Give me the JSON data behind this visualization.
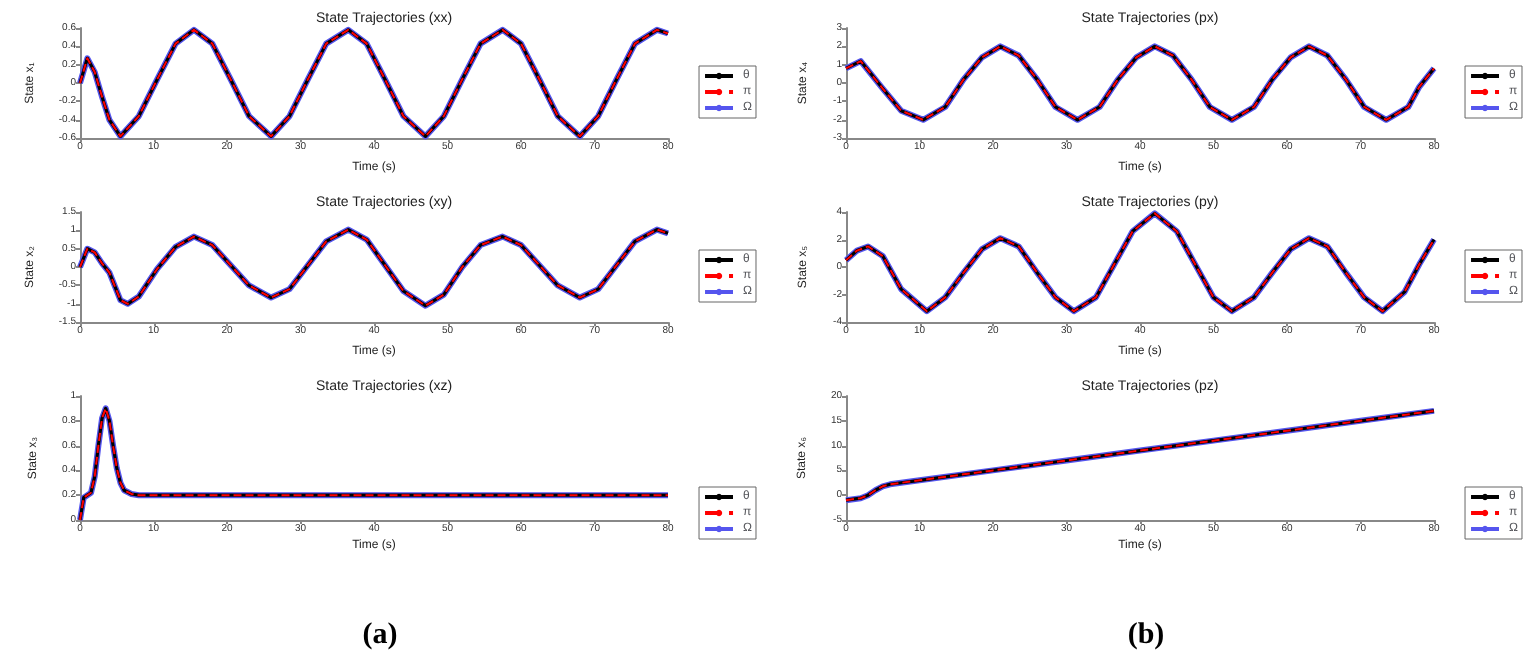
{
  "chart_data": [
    {
      "type": "line",
      "title": "State Trajectories (xx)",
      "xlabel": "Time (s)",
      "ylabel": "State x₁",
      "xlim": [
        0,
        80
      ],
      "xticks": [
        0,
        10,
        20,
        30,
        40,
        50,
        60,
        70,
        80
      ],
      "ylim": [
        -0.6,
        0.6
      ],
      "yticks": [
        -0.6,
        -0.4,
        -0.2,
        0,
        0.2,
        0.4,
        0.6
      ],
      "legend": "right",
      "grid": false,
      "marker": "none",
      "x": [
        0,
        1,
        2,
        3,
        4,
        5.5,
        8,
        10.5,
        13,
        15.5,
        18,
        20.5,
        23,
        26,
        28.5,
        31,
        33.5,
        36.5,
        39,
        41.5,
        44,
        47,
        49.5,
        52,
        54.5,
        57.5,
        60,
        62.5,
        65,
        68,
        70.5,
        73,
        75.5,
        78.5,
        80
      ],
      "series": [
        {
          "name": "θ",
          "color": "#000000",
          "line_style": "solid",
          "values": [
            0,
            0.27,
            0.12,
            -0.15,
            -0.4,
            -0.58,
            -0.36,
            0.04,
            0.43,
            0.58,
            0.43,
            0.04,
            -0.36,
            -0.58,
            -0.36,
            0.04,
            0.43,
            0.58,
            0.43,
            0.04,
            -0.36,
            -0.58,
            -0.36,
            0.04,
            0.43,
            0.58,
            0.43,
            0.04,
            -0.36,
            -0.58,
            -0.36,
            0.04,
            0.43,
            0.58,
            0.54
          ]
        },
        {
          "name": "π",
          "color": "#ff0000",
          "line_style": "dashed",
          "values": [
            0,
            0.27,
            0.12,
            -0.15,
            -0.4,
            -0.58,
            -0.36,
            0.04,
            0.43,
            0.58,
            0.43,
            0.04,
            -0.36,
            -0.58,
            -0.36,
            0.04,
            0.43,
            0.58,
            0.43,
            0.04,
            -0.36,
            -0.58,
            -0.36,
            0.04,
            0.43,
            0.58,
            0.43,
            0.04,
            -0.36,
            -0.58,
            -0.36,
            0.04,
            0.43,
            0.58,
            0.54
          ]
        },
        {
          "name": "Ω",
          "color": "#5555ee",
          "line_style": "solid",
          "values": [
            0,
            0.27,
            0.12,
            -0.15,
            -0.4,
            -0.58,
            -0.36,
            0.04,
            0.43,
            0.58,
            0.43,
            0.04,
            -0.36,
            -0.58,
            -0.36,
            0.04,
            0.43,
            0.58,
            0.43,
            0.04,
            -0.36,
            -0.58,
            -0.36,
            0.04,
            0.43,
            0.58,
            0.43,
            0.04,
            -0.36,
            -0.58,
            -0.36,
            0.04,
            0.43,
            0.58,
            0.54
          ]
        }
      ]
    },
    {
      "type": "line",
      "title": "State Trajectories (xy)",
      "xlabel": "Time (s)",
      "ylabel": "State x₂",
      "xlim": [
        0,
        80
      ],
      "xticks": [
        0,
        10,
        20,
        30,
        40,
        50,
        60,
        70,
        80
      ],
      "ylim": [
        -1.5,
        1.5
      ],
      "yticks": [
        -1.5,
        -1,
        -0.5,
        0,
        0.5,
        1,
        1.5
      ],
      "legend": "right",
      "grid": false,
      "marker": "none",
      "x": [
        0,
        1,
        2,
        3,
        4,
        5.5,
        6.5,
        8,
        10.5,
        13,
        15.5,
        18,
        20.5,
        23,
        26,
        28.5,
        31,
        33.5,
        36.5,
        39,
        41.5,
        44,
        47,
        49.5,
        52,
        54.5,
        57.5,
        60,
        62.5,
        65,
        68,
        70.5,
        73,
        75.5,
        78.5,
        80
      ],
      "series": [
        {
          "name": "θ",
          "color": "#000000",
          "line_style": "solid",
          "values": [
            0,
            0.5,
            0.4,
            0.1,
            -0.15,
            -0.9,
            -1,
            -0.8,
            -0.05,
            0.55,
            0.83,
            0.6,
            0.05,
            -0.5,
            -0.83,
            -0.6,
            0.05,
            0.7,
            1.02,
            0.75,
            0.05,
            -0.65,
            -1.05,
            -0.75,
            0,
            0.6,
            0.83,
            0.6,
            0.05,
            -0.5,
            -0.83,
            -0.6,
            0.05,
            0.7,
            1.02,
            0.92
          ]
        },
        {
          "name": "π",
          "color": "#ff0000",
          "line_style": "dashed",
          "values": [
            0,
            0.5,
            0.4,
            0.1,
            -0.15,
            -0.9,
            -1,
            -0.8,
            -0.05,
            0.55,
            0.83,
            0.6,
            0.05,
            -0.5,
            -0.83,
            -0.6,
            0.05,
            0.7,
            1.02,
            0.75,
            0.05,
            -0.65,
            -1.05,
            -0.75,
            0,
            0.6,
            0.83,
            0.6,
            0.05,
            -0.5,
            -0.83,
            -0.6,
            0.05,
            0.7,
            1.02,
            0.92
          ]
        },
        {
          "name": "Ω",
          "color": "#5555ee",
          "line_style": "solid",
          "values": [
            0,
            0.5,
            0.4,
            0.1,
            -0.15,
            -0.9,
            -1,
            -0.8,
            -0.05,
            0.55,
            0.83,
            0.6,
            0.05,
            -0.5,
            -0.83,
            -0.6,
            0.05,
            0.7,
            1.02,
            0.75,
            0.05,
            -0.65,
            -1.05,
            -0.75,
            0,
            0.6,
            0.83,
            0.6,
            0.05,
            -0.5,
            -0.83,
            -0.6,
            0.05,
            0.7,
            1.02,
            0.92
          ]
        }
      ]
    },
    {
      "type": "line",
      "title": "State Trajectories (xz)",
      "xlabel": "Time (s)",
      "ylabel": "State x₃",
      "xlim": [
        0,
        80
      ],
      "xticks": [
        0,
        10,
        20,
        30,
        40,
        50,
        60,
        70,
        80
      ],
      "ylim": [
        0,
        1
      ],
      "yticks": [
        0,
        0.2,
        0.4,
        0.6,
        0.8,
        1
      ],
      "legend": "right",
      "grid": false,
      "marker": "none",
      "annotations": [
        "(a)"
      ],
      "x": [
        0,
        0.5,
        1,
        1.5,
        2,
        2.5,
        3,
        3.5,
        4,
        4.5,
        5,
        5.5,
        6,
        7,
        8,
        10,
        20,
        30,
        40,
        50,
        60,
        70,
        80
      ],
      "series": [
        {
          "name": "θ",
          "color": "#000000",
          "line_style": "solid",
          "values": [
            0,
            0.18,
            0.2,
            0.22,
            0.35,
            0.6,
            0.82,
            0.9,
            0.8,
            0.6,
            0.42,
            0.3,
            0.24,
            0.21,
            0.2,
            0.2,
            0.2,
            0.2,
            0.2,
            0.2,
            0.2,
            0.2,
            0.2
          ]
        },
        {
          "name": "π",
          "color": "#ff0000",
          "line_style": "dashed",
          "values": [
            0,
            0.18,
            0.2,
            0.22,
            0.35,
            0.6,
            0.82,
            0.9,
            0.8,
            0.6,
            0.42,
            0.3,
            0.24,
            0.21,
            0.2,
            0.2,
            0.2,
            0.2,
            0.2,
            0.2,
            0.2,
            0.2,
            0.2
          ]
        },
        {
          "name": "Ω",
          "color": "#5555ee",
          "line_style": "solid",
          "values": [
            0,
            0.18,
            0.2,
            0.22,
            0.35,
            0.6,
            0.82,
            0.9,
            0.8,
            0.6,
            0.42,
            0.3,
            0.24,
            0.21,
            0.2,
            0.2,
            0.2,
            0.2,
            0.2,
            0.2,
            0.2,
            0.2,
            0.2
          ]
        }
      ]
    },
    {
      "type": "line",
      "title": "State Trajectories (px)",
      "xlabel": "Time (s)",
      "ylabel": "State x₄",
      "xlim": [
        0,
        80
      ],
      "xticks": [
        0,
        10,
        20,
        30,
        40,
        50,
        60,
        70,
        80
      ],
      "ylim": [
        -3,
        3
      ],
      "yticks": [
        -3,
        -2,
        -1,
        0,
        1,
        2,
        3
      ],
      "legend": "right",
      "grid": false,
      "marker": "none",
      "x": [
        0,
        2,
        5,
        7.5,
        10.5,
        13.5,
        16,
        18.5,
        21,
        23.5,
        26,
        28.5,
        31.5,
        34.5,
        37,
        39.5,
        42,
        44.5,
        47,
        49.5,
        52.5,
        55.5,
        58,
        60.5,
        63,
        65.5,
        68,
        70.5,
        73.5,
        76.5,
        78,
        80
      ],
      "series": [
        {
          "name": "θ",
          "color": "#000000",
          "line_style": "solid",
          "values": [
            0.8,
            1.2,
            -0.3,
            -1.5,
            -2,
            -1.3,
            0.2,
            1.4,
            2,
            1.5,
            0.2,
            -1.3,
            -2,
            -1.3,
            0.2,
            1.4,
            2,
            1.5,
            0.2,
            -1.3,
            -2,
            -1.3,
            0.2,
            1.4,
            2,
            1.5,
            0.2,
            -1.3,
            -2,
            -1.3,
            -0.2,
            0.8
          ]
        },
        {
          "name": "π",
          "color": "#ff0000",
          "line_style": "dashed",
          "values": [
            0.8,
            1.2,
            -0.3,
            -1.5,
            -2,
            -1.3,
            0.2,
            1.4,
            2,
            1.5,
            0.2,
            -1.3,
            -2,
            -1.3,
            0.2,
            1.4,
            2,
            1.5,
            0.2,
            -1.3,
            -2,
            -1.3,
            0.2,
            1.4,
            2,
            1.5,
            0.2,
            -1.3,
            -2,
            -1.3,
            -0.2,
            0.8
          ]
        },
        {
          "name": "Ω",
          "color": "#5555ee",
          "line_style": "solid",
          "values": [
            0.8,
            1.2,
            -0.3,
            -1.5,
            -2,
            -1.3,
            0.2,
            1.4,
            2,
            1.5,
            0.2,
            -1.3,
            -2,
            -1.3,
            0.2,
            1.4,
            2,
            1.5,
            0.2,
            -1.3,
            -2,
            -1.3,
            0.2,
            1.4,
            2,
            1.5,
            0.2,
            -1.3,
            -2,
            -1.3,
            -0.2,
            0.8
          ]
        }
      ]
    },
    {
      "type": "line",
      "title": "State Trajectories (py)",
      "xlabel": "Time (s)",
      "ylabel": "State x₅",
      "xlim": [
        0,
        80
      ],
      "xticks": [
        0,
        10,
        20,
        30,
        40,
        50,
        60,
        70,
        80
      ],
      "ylim": [
        -4,
        4
      ],
      "yticks": [
        -4,
        -2,
        0,
        2,
        4
      ],
      "legend": "right",
      "grid": false,
      "marker": "none",
      "x": [
        0,
        1.5,
        3,
        5,
        7.5,
        11,
        13.5,
        16,
        18.5,
        21,
        23.5,
        26,
        28.5,
        31,
        34,
        36.5,
        39,
        42,
        45,
        47.5,
        50,
        52.5,
        55.5,
        58,
        60.5,
        63,
        65.5,
        68,
        70.5,
        73,
        76,
        78,
        80
      ],
      "series": [
        {
          "name": "θ",
          "color": "#000000",
          "line_style": "solid",
          "values": [
            0.5,
            1.2,
            1.5,
            0.8,
            -1.6,
            -3.2,
            -2.2,
            -0.4,
            1.3,
            2.1,
            1.5,
            -0.4,
            -2.2,
            -3.2,
            -2.2,
            0.2,
            2.6,
            3.9,
            2.6,
            0.2,
            -2.2,
            -3.2,
            -2.2,
            -0.4,
            1.3,
            2.1,
            1.5,
            -0.4,
            -2.2,
            -3.2,
            -1.8,
            0.2,
            2
          ]
        },
        {
          "name": "π",
          "color": "#ff0000",
          "line_style": "dashed",
          "values": [
            0.5,
            1.2,
            1.5,
            0.8,
            -1.6,
            -3.2,
            -2.2,
            -0.4,
            1.3,
            2.1,
            1.5,
            -0.4,
            -2.2,
            -3.2,
            -2.2,
            0.2,
            2.6,
            3.9,
            2.6,
            0.2,
            -2.2,
            -3.2,
            -2.2,
            -0.4,
            1.3,
            2.1,
            1.5,
            -0.4,
            -2.2,
            -3.2,
            -1.8,
            0.2,
            2
          ]
        },
        {
          "name": "Ω",
          "color": "#5555ee",
          "line_style": "solid",
          "values": [
            0.5,
            1.2,
            1.5,
            0.8,
            -1.6,
            -3.2,
            -2.2,
            -0.4,
            1.3,
            2.1,
            1.5,
            -0.4,
            -2.2,
            -3.2,
            -2.2,
            0.2,
            2.6,
            3.9,
            2.6,
            0.2,
            -2.2,
            -3.2,
            -2.2,
            -0.4,
            1.3,
            2.1,
            1.5,
            -0.4,
            -2.2,
            -3.2,
            -1.8,
            0.2,
            2
          ]
        }
      ]
    },
    {
      "type": "line",
      "title": "State Trajectories (pz)",
      "xlabel": "Time (s)",
      "ylabel": "State x₆",
      "xlim": [
        0,
        80
      ],
      "xticks": [
        0,
        10,
        20,
        30,
        40,
        50,
        60,
        70,
        80
      ],
      "ylim": [
        -5,
        20
      ],
      "yticks": [
        -5,
        0,
        5,
        10,
        15,
        20
      ],
      "legend": "right",
      "grid": false,
      "marker": "none",
      "annotations": [
        "(b)"
      ],
      "x": [
        0,
        2,
        3,
        4,
        5,
        6,
        10,
        20,
        30,
        40,
        50,
        60,
        70,
        80
      ],
      "series": [
        {
          "name": "θ",
          "color": "#000000",
          "line_style": "solid",
          "values": [
            -1,
            -0.6,
            0,
            1,
            1.8,
            2.2,
            3,
            5,
            7,
            9,
            11,
            13,
            15,
            17
          ]
        },
        {
          "name": "π",
          "color": "#ff0000",
          "line_style": "dashed",
          "values": [
            -1,
            -0.6,
            0,
            1,
            1.8,
            2.2,
            3,
            5,
            7,
            9,
            11,
            13,
            15,
            17
          ]
        },
        {
          "name": "Ω",
          "color": "#5555ee",
          "line_style": "solid",
          "values": [
            -1,
            -0.6,
            0,
            1,
            1.8,
            2.2,
            3,
            5,
            7,
            9,
            11,
            13,
            15,
            17
          ]
        }
      ]
    }
  ]
}
